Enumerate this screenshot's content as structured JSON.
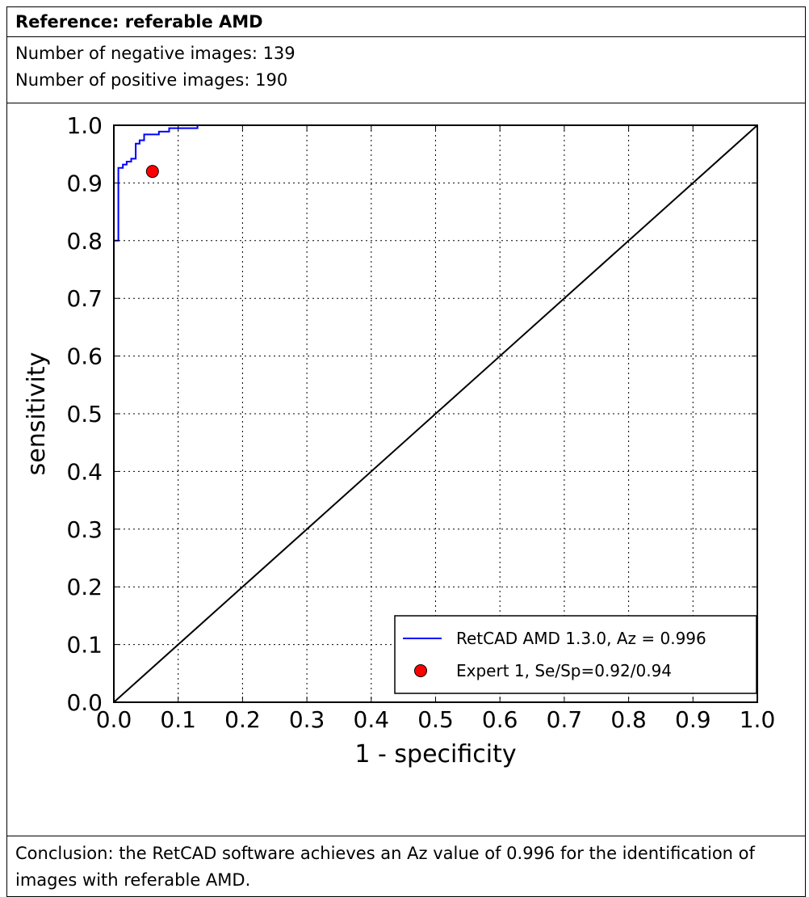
{
  "report": {
    "reference_label": "Reference: referable AMD",
    "negative_count_text": "Number of negative images: 139",
    "positive_count_text": "Number of positive images: 190",
    "conclusion_text": "Conclusion: the RetCAD software achieves an Az value of 0.996 for the identification of images with referable AMD."
  },
  "chart_data": {
    "type": "line",
    "title": "",
    "xlabel": "1 - specificity",
    "ylabel": "sensitivity",
    "xlim": [
      0.0,
      1.0
    ],
    "ylim": [
      0.0,
      1.0
    ],
    "xticks": [
      "0.0",
      "0.1",
      "0.2",
      "0.3",
      "0.4",
      "0.5",
      "0.6",
      "0.7",
      "0.8",
      "0.9",
      "1.0"
    ],
    "yticks": [
      "0.0",
      "0.1",
      "0.2",
      "0.3",
      "0.4",
      "0.5",
      "0.6",
      "0.7",
      "0.8",
      "0.9",
      "1.0"
    ],
    "grid": true,
    "legend_position": "lower-right",
    "series": [
      {
        "name": "RetCAD AMD 1.3.0, Az = 0.996",
        "kind": "step-line",
        "color": "#0000ff",
        "points": [
          [
            0.0,
            0.78
          ],
          [
            0.0,
            0.8
          ],
          [
            0.007,
            0.8
          ],
          [
            0.007,
            0.926
          ],
          [
            0.014,
            0.926
          ],
          [
            0.014,
            0.932
          ],
          [
            0.02,
            0.932
          ],
          [
            0.02,
            0.937
          ],
          [
            0.027,
            0.937
          ],
          [
            0.027,
            0.942
          ],
          [
            0.034,
            0.942
          ],
          [
            0.034,
            0.968
          ],
          [
            0.04,
            0.968
          ],
          [
            0.04,
            0.974
          ],
          [
            0.047,
            0.974
          ],
          [
            0.047,
            0.984
          ],
          [
            0.065,
            0.984
          ],
          [
            0.065,
            0.984
          ],
          [
            0.07,
            0.984
          ],
          [
            0.07,
            0.989
          ],
          [
            0.086,
            0.989
          ],
          [
            0.086,
            0.995
          ],
          [
            0.13,
            0.995
          ],
          [
            0.13,
            1.0
          ]
        ]
      },
      {
        "name": "Expert 1, Se/Sp=0.92/0.94",
        "kind": "point",
        "color": "#ff0000",
        "points": [
          [
            0.06,
            0.92
          ]
        ]
      },
      {
        "name": "",
        "kind": "diagonal",
        "color": "#000000",
        "points": [
          [
            0.0,
            0.0
          ],
          [
            1.0,
            1.0
          ]
        ]
      }
    ]
  }
}
